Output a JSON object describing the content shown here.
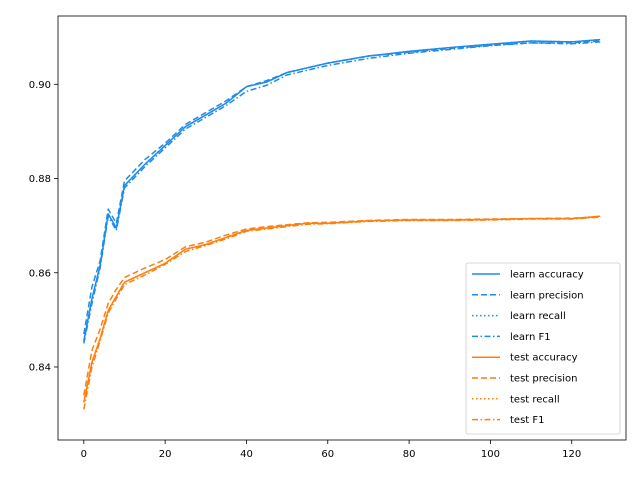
{
  "chart_data": {
    "type": "line",
    "title": "",
    "xlabel": "",
    "ylabel": "",
    "xlim": [
      -6.35,
      133.35
    ],
    "ylim": [
      0.8245,
      0.9145
    ],
    "xticks": [
      0,
      20,
      40,
      60,
      80,
      100,
      120
    ],
    "xtick_labels": [
      "0",
      "20",
      "40",
      "60",
      "80",
      "100",
      "120"
    ],
    "yticks": [
      0.84,
      0.86,
      0.88,
      0.9
    ],
    "ytick_labels": [
      "0.84",
      "0.86",
      "0.88",
      "0.90"
    ],
    "grid": false,
    "legend_position": "lower-right",
    "colors": {
      "learn": "#1f8bea",
      "test": "#ff7f0e"
    },
    "x": [
      0,
      2,
      4,
      6,
      8,
      10,
      15,
      20,
      25,
      30,
      35,
      40,
      45,
      50,
      55,
      60,
      70,
      80,
      90,
      100,
      110,
      120,
      127
    ],
    "series": [
      {
        "name": "learn accuracy",
        "group": "learn",
        "dash": "solid",
        "values": [
          0.8455,
          0.8545,
          0.8615,
          0.8725,
          0.8695,
          0.8785,
          0.883,
          0.887,
          0.891,
          0.8935,
          0.896,
          0.8995,
          0.9005,
          0.9025,
          0.9035,
          0.9045,
          0.906,
          0.907,
          0.9078,
          0.9085,
          0.9092,
          0.909,
          0.9095
        ]
      },
      {
        "name": "learn precision",
        "group": "learn",
        "dash": "dashed",
        "values": [
          0.847,
          0.857,
          0.8625,
          0.8735,
          0.8705,
          0.8795,
          0.884,
          0.8875,
          0.8915,
          0.894,
          0.8965,
          0.8995,
          0.9008,
          0.9025,
          0.9035,
          0.9045,
          0.906,
          0.9068,
          0.9076,
          0.9083,
          0.9088,
          0.9088,
          0.9092
        ]
      },
      {
        "name": "learn recall",
        "group": "learn",
        "dash": "dotted",
        "values": [
          0.8455,
          0.8545,
          0.8615,
          0.8725,
          0.8695,
          0.8785,
          0.883,
          0.887,
          0.891,
          0.8935,
          0.896,
          0.8995,
          0.9005,
          0.9025,
          0.9035,
          0.9045,
          0.906,
          0.907,
          0.9078,
          0.9085,
          0.9092,
          0.909,
          0.9095
        ]
      },
      {
        "name": "learn F1",
        "group": "learn",
        "dash": "dashdot",
        "values": [
          0.845,
          0.8535,
          0.861,
          0.872,
          0.869,
          0.878,
          0.8825,
          0.8865,
          0.8905,
          0.893,
          0.8955,
          0.8985,
          0.8998,
          0.902,
          0.903,
          0.904,
          0.9055,
          0.9066,
          0.9074,
          0.9082,
          0.9088,
          0.9086,
          0.909
        ]
      },
      {
        "name": "test accuracy",
        "group": "test",
        "dash": "solid",
        "values": [
          0.8325,
          0.841,
          0.846,
          0.852,
          0.855,
          0.858,
          0.86,
          0.862,
          0.865,
          0.866,
          0.8675,
          0.869,
          0.8695,
          0.87,
          0.8705,
          0.8705,
          0.871,
          0.8712,
          0.8712,
          0.8713,
          0.8715,
          0.8715,
          0.872
        ]
      },
      {
        "name": "test precision",
        "group": "test",
        "dash": "dashed",
        "values": [
          0.834,
          0.8435,
          0.848,
          0.8535,
          0.8565,
          0.859,
          0.861,
          0.8628,
          0.8655,
          0.8665,
          0.868,
          0.8693,
          0.8698,
          0.8702,
          0.8706,
          0.8707,
          0.8711,
          0.8713,
          0.8713,
          0.8714,
          0.8715,
          0.8716,
          0.8718
        ]
      },
      {
        "name": "test recall",
        "group": "test",
        "dash": "dotted",
        "values": [
          0.8325,
          0.841,
          0.846,
          0.852,
          0.855,
          0.858,
          0.86,
          0.862,
          0.865,
          0.866,
          0.8675,
          0.869,
          0.8695,
          0.87,
          0.8705,
          0.8705,
          0.871,
          0.8712,
          0.8712,
          0.8713,
          0.8715,
          0.8715,
          0.872
        ]
      },
      {
        "name": "test F1",
        "group": "test",
        "dash": "dashdot",
        "values": [
          0.831,
          0.84,
          0.8455,
          0.8515,
          0.8545,
          0.8575,
          0.8595,
          0.8618,
          0.8645,
          0.8658,
          0.8672,
          0.8688,
          0.8693,
          0.8698,
          0.8703,
          0.8704,
          0.8709,
          0.8711,
          0.8711,
          0.8712,
          0.8714,
          0.8714,
          0.8718
        ]
      }
    ]
  }
}
